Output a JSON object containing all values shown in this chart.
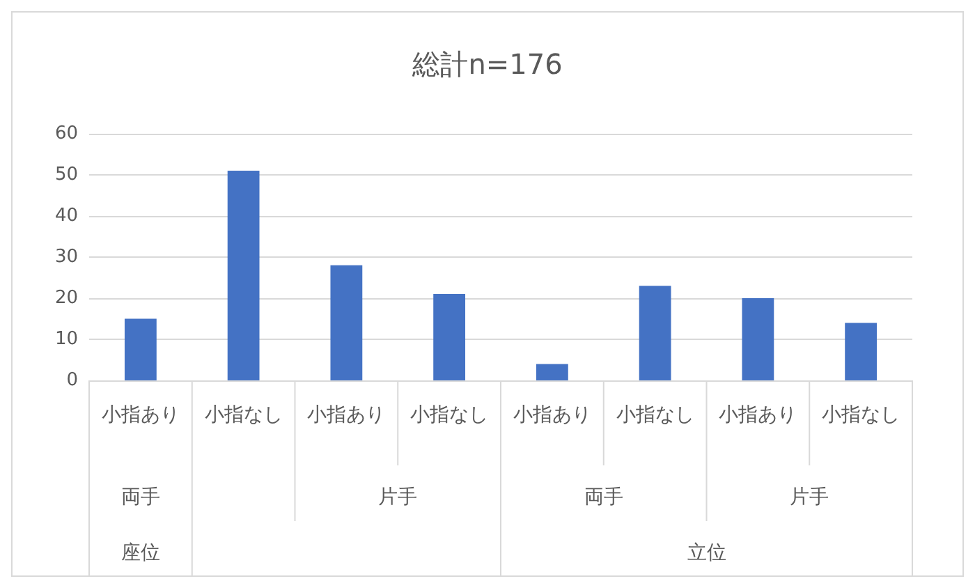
{
  "chart_data": {
    "type": "bar",
    "title": "総計n=176",
    "categories": [
      "小指あり",
      "小指なし",
      "小指あり",
      "小指なし",
      "小指あり",
      "小指なし",
      "小指あり",
      "小指なし"
    ],
    "values": [
      15,
      51,
      28,
      21,
      4,
      23,
      20,
      14
    ],
    "color": "#4472c4",
    "ylim": [
      0,
      60
    ],
    "yticks": [
      0,
      10,
      20,
      30,
      40,
      50,
      60
    ],
    "grid": "y",
    "annotations": [
      "両手",
      "片手",
      "両手",
      "片手",
      "座位",
      "立位"
    ]
  }
}
